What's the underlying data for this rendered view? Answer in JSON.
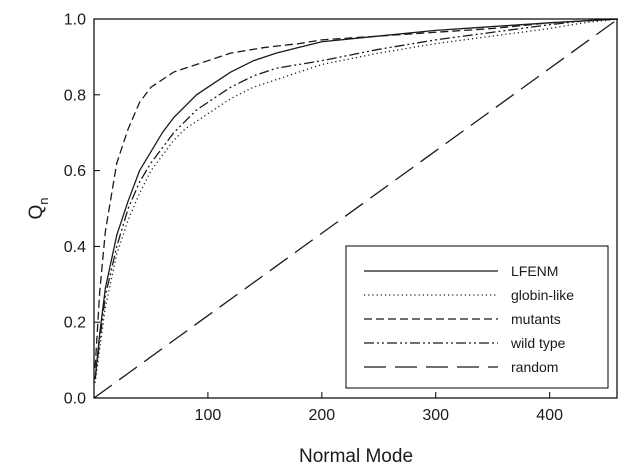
{
  "chart_data": {
    "type": "line",
    "xlabel": "Normal Mode",
    "ylabel": "Q",
    "ylabel_subscript": "n",
    "xlim": [
      0,
      460
    ],
    "ylim": [
      0.0,
      1.0
    ],
    "grid": false,
    "legend_position": "bottom-right",
    "x_ticks": [
      100,
      200,
      300,
      400
    ],
    "x_tick_labels": [
      "100",
      "200",
      "300",
      "400"
    ],
    "y_ticks": [
      0.0,
      0.2,
      0.4,
      0.6,
      0.8,
      1.0
    ],
    "y_tick_labels": [
      "0.0",
      "0.2",
      "0.4",
      "0.6",
      "0.8",
      "1.0"
    ],
    "series": [
      {
        "name": "LFENM",
        "style": "solid",
        "x": [
          1,
          5,
          10,
          20,
          30,
          40,
          50,
          60,
          70,
          80,
          90,
          100,
          120,
          140,
          160,
          180,
          200,
          250,
          300,
          350,
          400,
          430,
          460
        ],
        "y": [
          0.05,
          0.17,
          0.29,
          0.43,
          0.52,
          0.6,
          0.65,
          0.7,
          0.74,
          0.77,
          0.8,
          0.82,
          0.86,
          0.89,
          0.91,
          0.925,
          0.94,
          0.955,
          0.97,
          0.98,
          0.99,
          0.995,
          1.0
        ]
      },
      {
        "name": "globin-like",
        "style": "dotted",
        "x": [
          1,
          5,
          10,
          20,
          30,
          40,
          50,
          60,
          70,
          80,
          90,
          100,
          120,
          140,
          160,
          180,
          200,
          250,
          300,
          350,
          400,
          430,
          460
        ],
        "y": [
          0.04,
          0.13,
          0.24,
          0.38,
          0.47,
          0.54,
          0.6,
          0.64,
          0.68,
          0.71,
          0.73,
          0.75,
          0.79,
          0.82,
          0.84,
          0.86,
          0.88,
          0.91,
          0.935,
          0.955,
          0.975,
          0.99,
          1.0
        ]
      },
      {
        "name": "mutants",
        "style": "dashed",
        "x": [
          1,
          5,
          10,
          15,
          20,
          30,
          40,
          50,
          60,
          70,
          80,
          90,
          100,
          120,
          150,
          180,
          200,
          250,
          300,
          350,
          400,
          430,
          460
        ],
        "y": [
          0.08,
          0.28,
          0.44,
          0.53,
          0.62,
          0.71,
          0.78,
          0.82,
          0.84,
          0.86,
          0.87,
          0.88,
          0.89,
          0.91,
          0.925,
          0.935,
          0.945,
          0.955,
          0.965,
          0.975,
          0.99,
          0.995,
          1.0
        ]
      },
      {
        "name": "wild type",
        "style": "dash-dot-dot",
        "x": [
          1,
          5,
          10,
          20,
          30,
          40,
          50,
          60,
          70,
          80,
          90,
          100,
          120,
          140,
          160,
          180,
          200,
          250,
          300,
          350,
          400,
          430,
          460
        ],
        "y": [
          0.05,
          0.15,
          0.27,
          0.4,
          0.5,
          0.57,
          0.62,
          0.66,
          0.7,
          0.73,
          0.76,
          0.78,
          0.82,
          0.85,
          0.87,
          0.88,
          0.89,
          0.92,
          0.945,
          0.965,
          0.985,
          0.995,
          1.0
        ]
      },
      {
        "name": "random",
        "style": "long-dash",
        "x": [
          0,
          460
        ],
        "y": [
          0.0,
          1.0
        ]
      }
    ]
  }
}
